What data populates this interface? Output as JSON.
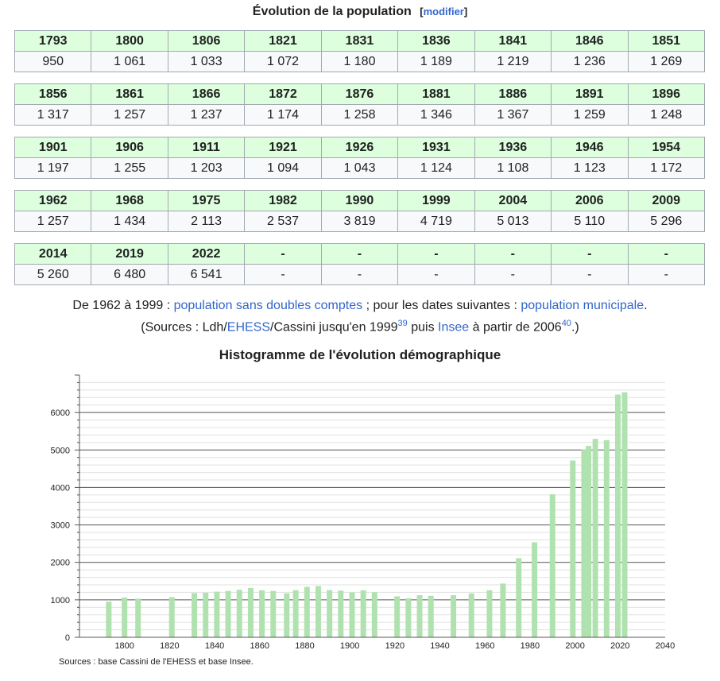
{
  "header": {
    "title": "Évolution de la population",
    "edit_label": "modifier"
  },
  "table_rows": [
    {
      "years": [
        "1793",
        "1800",
        "1806",
        "1821",
        "1831",
        "1836",
        "1841",
        "1846",
        "1851"
      ],
      "values": [
        "950",
        "1 061",
        "1 033",
        "1 072",
        "1 180",
        "1 189",
        "1 219",
        "1 236",
        "1 269"
      ]
    },
    {
      "years": [
        "1856",
        "1861",
        "1866",
        "1872",
        "1876",
        "1881",
        "1886",
        "1891",
        "1896"
      ],
      "values": [
        "1 317",
        "1 257",
        "1 237",
        "1 174",
        "1 258",
        "1 346",
        "1 367",
        "1 259",
        "1 248"
      ]
    },
    {
      "years": [
        "1901",
        "1906",
        "1911",
        "1921",
        "1926",
        "1931",
        "1936",
        "1946",
        "1954"
      ],
      "values": [
        "1 197",
        "1 255",
        "1 203",
        "1 094",
        "1 043",
        "1 124",
        "1 108",
        "1 123",
        "1 172"
      ]
    },
    {
      "years": [
        "1962",
        "1968",
        "1975",
        "1982",
        "1990",
        "1999",
        "2004",
        "2006",
        "2009"
      ],
      "values": [
        "1 257",
        "1 434",
        "2 113",
        "2 537",
        "3 819",
        "4 719",
        "5 013",
        "5 110",
        "5 296"
      ]
    },
    {
      "years": [
        "2014",
        "2019",
        "2022",
        "-",
        "-",
        "-",
        "-",
        "-",
        "-"
      ],
      "values": [
        "5 260",
        "6 480",
        "6 541",
        "-",
        "-",
        "-",
        "-",
        "-",
        "-"
      ]
    }
  ],
  "note": {
    "line1_a": "De 1962 à 1999 : ",
    "link_sans_doubles": "population sans doubles comptes",
    "line1_b": " ; pour les dates suivantes : ",
    "link_municipale": "population municipale",
    "line1_c": ".",
    "line2_a": "(Sources : Ldh/",
    "link_ehess": "EHESS",
    "line2_b": "/Cassini jusqu'en 1999",
    "ref1": "39",
    "line2_c": " puis ",
    "link_insee": "Insee",
    "line2_d": " à partir de 2006",
    "ref2": "40",
    "line2_e": ".)"
  },
  "chart_data": {
    "type": "bar",
    "title": "Histogramme de l'évolution démographique",
    "x": [
      1793,
      1800,
      1806,
      1821,
      1831,
      1836,
      1841,
      1846,
      1851,
      1856,
      1861,
      1866,
      1872,
      1876,
      1881,
      1886,
      1891,
      1896,
      1901,
      1906,
      1911,
      1921,
      1926,
      1931,
      1936,
      1946,
      1954,
      1962,
      1968,
      1975,
      1982,
      1990,
      1999,
      2004,
      2006,
      2009,
      2014,
      2019,
      2022
    ],
    "values": [
      950,
      1061,
      1033,
      1072,
      1180,
      1189,
      1219,
      1236,
      1269,
      1317,
      1257,
      1237,
      1174,
      1258,
      1346,
      1367,
      1259,
      1248,
      1197,
      1255,
      1203,
      1094,
      1043,
      1124,
      1108,
      1123,
      1172,
      1257,
      1434,
      2113,
      2537,
      3819,
      4719,
      5013,
      5110,
      5296,
      5260,
      6480,
      6541
    ],
    "xlim": [
      1780,
      2040
    ],
    "ylim": [
      0,
      7000
    ],
    "x_ticks": [
      1800,
      1820,
      1840,
      1860,
      1880,
      1900,
      1920,
      1940,
      1960,
      1980,
      2000,
      2020,
      2040
    ],
    "y_ticks": [
      0,
      1000,
      2000,
      3000,
      4000,
      5000,
      6000
    ],
    "grid": true,
    "bar_color": "#b0e2b0"
  },
  "footer": {
    "sources": "Sources : base Cassini de l'EHESS et base Insee."
  }
}
